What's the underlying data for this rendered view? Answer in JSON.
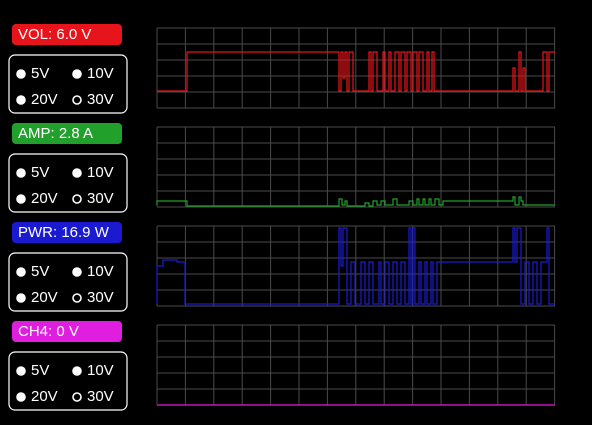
{
  "channels": [
    {
      "label": "VOL: 6.0 V",
      "color": "#e8141c",
      "options": [
        "5V",
        "10V",
        "20V",
        "30V"
      ],
      "selected": 3
    },
    {
      "label": "AMP: 2.8 A",
      "color": "#22a02c",
      "options": [
        "5V",
        "10V",
        "20V",
        "30V"
      ],
      "selected": 3
    },
    {
      "label": "PWR: 16.9 W",
      "color": "#1a1ad0",
      "options": [
        "5V",
        "10V",
        "20V",
        "30V"
      ],
      "selected": 3
    },
    {
      "label": "CH4: 0 V",
      "color": "#e01ee0",
      "options": [
        "5V",
        "10V",
        "20V",
        "30V"
      ],
      "selected": 3
    }
  ]
}
